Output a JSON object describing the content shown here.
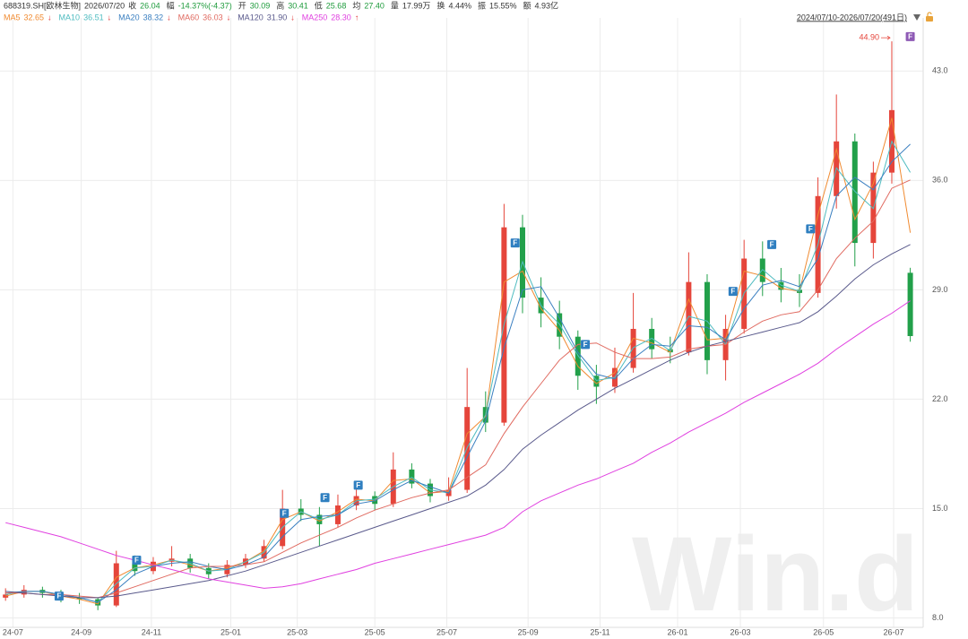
{
  "chart_data": {
    "type": "candlestick",
    "title": "688319.SH[欧林生物]",
    "date": "2026/07/20",
    "quote": [
      {
        "label": "收",
        "value": "26.04",
        "color": "#1e9b3c"
      },
      {
        "label": "幅",
        "value": "-14.37%(-4.37)",
        "color": "#1e9b3c"
      },
      {
        "label": "开",
        "value": "30.09",
        "color": "#1e9b3c"
      },
      {
        "label": "高",
        "value": "30.41",
        "color": "#1e9b3c"
      },
      {
        "label": "低",
        "value": "25.68",
        "color": "#1e9b3c"
      },
      {
        "label": "均",
        "value": "27.40",
        "color": "#1e9b3c"
      },
      {
        "label": "量",
        "value": "17.99万",
        "color": "#333333"
      },
      {
        "label": "换",
        "value": "4.44%",
        "color": "#333333"
      },
      {
        "label": "振",
        "value": "15.55%",
        "color": "#333333"
      },
      {
        "label": "额",
        "value": "4.93亿",
        "color": "#333333"
      }
    ],
    "range_label": "2024/07/10-2026/07/20(491日)",
    "watermark": "Win.d",
    "up_color": "#e5453b",
    "down_color": "#22a04a",
    "x": [
      0,
      10,
      20,
      30,
      40,
      50,
      60,
      70,
      80,
      90,
      100,
      110,
      120,
      130,
      140,
      150,
      160,
      170,
      180,
      190,
      200,
      210,
      220,
      230,
      240,
      250,
      260,
      270,
      280,
      290,
      300,
      310,
      320,
      330,
      340,
      350,
      360,
      370,
      380,
      390,
      400,
      410,
      420,
      430,
      440,
      450,
      460,
      470,
      480,
      490
    ],
    "open": [
      9.3,
      9.5,
      9.8,
      9.6,
      9.3,
      9.2,
      8.8,
      11.5,
      11.0,
      11.6,
      11.8,
      11.2,
      10.8,
      11.4,
      11.8,
      12.6,
      15.0,
      14.6,
      14.0,
      15.2,
      15.8,
      15.3,
      17.5,
      16.6,
      15.8,
      16.2,
      21.5,
      20.5,
      33.0,
      28.5,
      27.5,
      26.0,
      23.5,
      22.8,
      24.0,
      26.5,
      25.2,
      25.0,
      29.5,
      24.5,
      26.5,
      31.0,
      29.5,
      29.0,
      28.8,
      35.0,
      38.5,
      32.0,
      36.5,
      30.09
    ],
    "high": [
      9.9,
      10.1,
      10.0,
      9.8,
      9.6,
      9.3,
      12.3,
      12.0,
      11.9,
      12.6,
      12.1,
      11.5,
      11.7,
      12.1,
      13.0,
      16.2,
      15.6,
      15.1,
      15.9,
      16.5,
      16.1,
      18.6,
      17.9,
      16.9,
      17.0,
      24.0,
      22.5,
      34.5,
      33.8,
      29.8,
      28.3,
      26.4,
      24.2,
      25.3,
      28.8,
      27.2,
      26.0,
      31.4,
      30.0,
      27.4,
      32.2,
      32.1,
      30.4,
      30.0,
      36.2,
      41.5,
      39.0,
      37.2,
      44.9,
      30.41
    ],
    "low": [
      9.1,
      9.3,
      9.3,
      9.0,
      8.9,
      8.5,
      8.7,
      10.7,
      10.8,
      11.3,
      10.9,
      10.5,
      10.6,
      11.2,
      11.6,
      12.4,
      14.2,
      12.6,
      13.8,
      14.9,
      14.9,
      15.1,
      16.3,
      15.4,
      15.5,
      16.0,
      19.9,
      20.3,
      27.5,
      26.6,
      25.2,
      22.6,
      21.7,
      22.4,
      23.7,
      24.6,
      24.3,
      24.8,
      23.6,
      23.2,
      26.2,
      28.6,
      28.2,
      27.9,
      28.5,
      34.2,
      30.5,
      31.0,
      35.8,
      25.68
    ],
    "close": [
      9.5,
      9.8,
      9.6,
      9.3,
      9.2,
      8.8,
      11.5,
      11.0,
      11.6,
      11.8,
      11.2,
      10.8,
      11.4,
      11.8,
      12.6,
      15.0,
      14.6,
      14.0,
      15.2,
      15.8,
      15.3,
      17.5,
      16.6,
      15.8,
      16.2,
      21.5,
      20.5,
      33.0,
      28.5,
      27.5,
      26.0,
      23.5,
      22.8,
      24.0,
      26.5,
      25.2,
      25.0,
      29.5,
      24.5,
      26.5,
      31.0,
      29.5,
      29.0,
      28.8,
      35.0,
      38.5,
      32.0,
      36.5,
      40.5,
      26.04
    ],
    "series": [
      {
        "name": "MA5",
        "color": "#f08a30",
        "value_label": "32.65",
        "arrow": "↓",
        "values": [
          9.4,
          9.7,
          9.7,
          9.4,
          9.2,
          8.9,
          10.6,
          11.2,
          11.4,
          11.7,
          11.4,
          11.0,
          11.2,
          11.6,
          12.3,
          14.3,
          14.8,
          14.2,
          14.8,
          15.6,
          15.5,
          16.8,
          16.9,
          16.0,
          16.1,
          19.8,
          20.9,
          29.5,
          30.2,
          27.8,
          26.4,
          24.1,
          23.0,
          23.7,
          25.9,
          25.6,
          25.0,
          28.4,
          25.8,
          25.9,
          30.2,
          29.9,
          29.1,
          28.9,
          33.8,
          38.0,
          33.5,
          35.8,
          40.0,
          32.65
        ]
      },
      {
        "name": "MA10",
        "color": "#4fbcc0",
        "value_label": "36.51",
        "arrow": "↓",
        "values": [
          9.5,
          9.7,
          9.7,
          9.5,
          9.3,
          9.0,
          10.2,
          11.2,
          11.3,
          11.7,
          11.5,
          11.0,
          11.1,
          11.6,
          12.2,
          13.8,
          14.8,
          14.3,
          14.6,
          15.5,
          15.6,
          16.4,
          17.0,
          16.2,
          16.0,
          18.9,
          21.0,
          26.8,
          30.8,
          28.0,
          26.8,
          24.8,
          23.2,
          23.4,
          25.3,
          25.9,
          25.1,
          27.3,
          27.0,
          25.5,
          28.8,
          30.3,
          29.3,
          28.9,
          31.9,
          36.8,
          35.3,
          34.2,
          38.5,
          36.51
        ]
      },
      {
        "name": "MA20",
        "color": "#3a7fc0",
        "value_label": "38.32",
        "arrow": "↓",
        "values": [
          9.6,
          9.7,
          9.7,
          9.5,
          9.3,
          9.0,
          9.8,
          10.8,
          11.3,
          11.5,
          11.6,
          11.3,
          11.1,
          11.4,
          11.9,
          13.2,
          14.3,
          14.5,
          14.6,
          15.3,
          15.5,
          16.2,
          16.8,
          16.4,
          16.0,
          18.3,
          20.6,
          25.3,
          29.0,
          29.2,
          27.2,
          25.0,
          23.6,
          23.3,
          24.6,
          25.5,
          25.4,
          26.7,
          26.6,
          25.8,
          27.8,
          29.3,
          29.6,
          29.2,
          31.0,
          35.0,
          36.2,
          35.4,
          37.2,
          38.32
        ]
      },
      {
        "name": "MA60",
        "color": "#e06a60",
        "value_label": "36.03",
        "arrow": "↓",
        "values": [
          9.6,
          9.6,
          9.5,
          9.5,
          9.4,
          9.3,
          9.6,
          10.0,
          10.4,
          10.8,
          11.2,
          11.3,
          11.3,
          11.4,
          11.6,
          12.2,
          12.8,
          13.3,
          13.8,
          14.4,
          14.9,
          15.3,
          15.7,
          16.0,
          16.2,
          17.0,
          17.8,
          19.8,
          21.5,
          23.0,
          24.5,
          25.5,
          25.6,
          25.0,
          24.6,
          24.6,
          24.7,
          25.2,
          25.4,
          25.5,
          26.3,
          27.0,
          27.4,
          27.6,
          29.0,
          31.0,
          32.3,
          33.4,
          35.5,
          36.03
        ]
      },
      {
        "name": "MA120",
        "color": "#5a5a8c",
        "value_label": "31.90",
        "arrow": "↓",
        "values": [
          9.7,
          9.6,
          9.5,
          9.4,
          9.3,
          9.3,
          9.4,
          9.6,
          9.8,
          10.0,
          10.2,
          10.4,
          10.7,
          11.0,
          11.4,
          11.8,
          12.2,
          12.6,
          13.0,
          13.4,
          13.8,
          14.2,
          14.6,
          15.0,
          15.4,
          15.8,
          16.5,
          17.5,
          18.8,
          19.7,
          20.5,
          21.3,
          22.0,
          22.7,
          23.3,
          23.9,
          24.5,
          25.0,
          25.4,
          25.7,
          26.0,
          26.3,
          26.6,
          26.9,
          27.6,
          28.6,
          29.7,
          30.6,
          31.3,
          31.9
        ]
      },
      {
        "name": "MA250",
        "color": "#e040e0",
        "value_label": "28.30",
        "arrow": "↑",
        "values": [
          14.1,
          13.8,
          13.5,
          13.2,
          12.8,
          12.4,
          12.0,
          11.7,
          11.4,
          11.1,
          10.8,
          10.5,
          10.3,
          10.1,
          9.9,
          10.0,
          10.2,
          10.5,
          10.8,
          11.1,
          11.5,
          11.8,
          12.1,
          12.4,
          12.7,
          13.0,
          13.3,
          13.8,
          14.8,
          15.5,
          16.0,
          16.5,
          16.9,
          17.4,
          17.9,
          18.6,
          19.2,
          19.9,
          20.5,
          21.1,
          21.8,
          22.4,
          23.0,
          23.6,
          24.3,
          25.2,
          26.0,
          26.8,
          27.5,
          28.3
        ]
      }
    ],
    "xlim": [
      -3,
      497
    ],
    "xticks": [
      {
        "value": 4,
        "label": "24-07"
      },
      {
        "value": 41,
        "label": "24-09"
      },
      {
        "value": 79,
        "label": "24-11"
      },
      {
        "value": 122,
        "label": "25-01"
      },
      {
        "value": 158,
        "label": "25-03"
      },
      {
        "value": 200,
        "label": "25-05"
      },
      {
        "value": 239,
        "label": "25-07"
      },
      {
        "value": 283,
        "label": "25-09"
      },
      {
        "value": 322,
        "label": "25-11"
      },
      {
        "value": 364,
        "label": "26-01"
      },
      {
        "value": 398,
        "label": "26-03"
      },
      {
        "value": 443,
        "label": "26-05"
      },
      {
        "value": 481,
        "label": "26-07"
      }
    ],
    "ylim": [
      7.4,
      46.4
    ],
    "yticks": [
      {
        "value": 8,
        "label": "8.0"
      },
      {
        "value": 15,
        "label": "15.0"
      },
      {
        "value": 22,
        "label": "22.0"
      },
      {
        "value": 29,
        "label": "29.0"
      },
      {
        "value": 36,
        "label": "36.0"
      },
      {
        "value": 43,
        "label": "43.0"
      }
    ],
    "grid": true,
    "annotations": [
      {
        "text": "44.90",
        "x": 480,
        "y": 44.9,
        "color": "#e5453b"
      }
    ],
    "flag_label": "F",
    "flags": [
      {
        "x": 29,
        "y": 9.4,
        "color": "#2f7fc0"
      },
      {
        "x": 71,
        "y": 11.7,
        "color": "#2f7fc0"
      },
      {
        "x": 151,
        "y": 14.7,
        "color": "#2f7fc0"
      },
      {
        "x": 173,
        "y": 15.7,
        "color": "#2f7fc0"
      },
      {
        "x": 191,
        "y": 16.5,
        "color": "#2f7fc0"
      },
      {
        "x": 276,
        "y": 32.0,
        "color": "#2f7fc0"
      },
      {
        "x": 314,
        "y": 25.5,
        "color": "#2f7fc0"
      },
      {
        "x": 394,
        "y": 28.9,
        "color": "#2f7fc0"
      },
      {
        "x": 415,
        "y": 31.9,
        "color": "#2f7fc0"
      },
      {
        "x": 436,
        "y": 32.9,
        "color": "#2f7fc0"
      },
      {
        "x": 490,
        "y": 45.2,
        "color": "#8e5ab5"
      }
    ]
  }
}
